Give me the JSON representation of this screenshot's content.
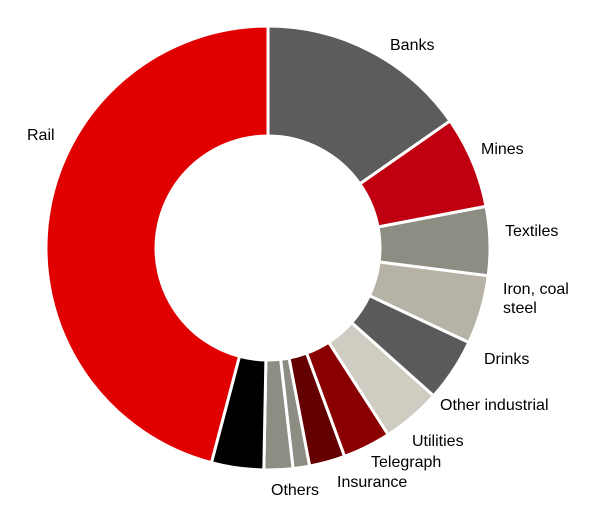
{
  "chart_data": {
    "type": "pie",
    "donut": true,
    "start_angle_deg": 0,
    "direction": "clockwise",
    "slices": [
      {
        "label": "Banks",
        "value": 15.3,
        "color": "#5b5c5b"
      },
      {
        "label": "Mines",
        "value": 6.7,
        "color": "#c00010"
      },
      {
        "label": "Textiles",
        "value": 5.0,
        "color": "#8d8d84"
      },
      {
        "label": "Iron, coal\nsteel",
        "value": 5.0,
        "color": "#b6b3a6"
      },
      {
        "label": "Drinks",
        "value": 4.6,
        "color": "#5a5a5a"
      },
      {
        "label": "Other industrial",
        "value": 4.3,
        "color": "#cfcdc2"
      },
      {
        "label": "Utilities",
        "value": 3.5,
        "color": "#8a0000"
      },
      {
        "label": "Telegraph",
        "value": 2.6,
        "color": "#650000"
      },
      {
        "label": "Insurance",
        "value": 1.2,
        "color": "#8d8d84"
      },
      {
        "label": "",
        "value": 2.1,
        "color": "#8d8d84"
      },
      {
        "label": "Others",
        "value": 3.8,
        "color": "#000000"
      },
      {
        "label": "Rail",
        "value": 45.9,
        "color": "#e00000"
      }
    ]
  }
}
